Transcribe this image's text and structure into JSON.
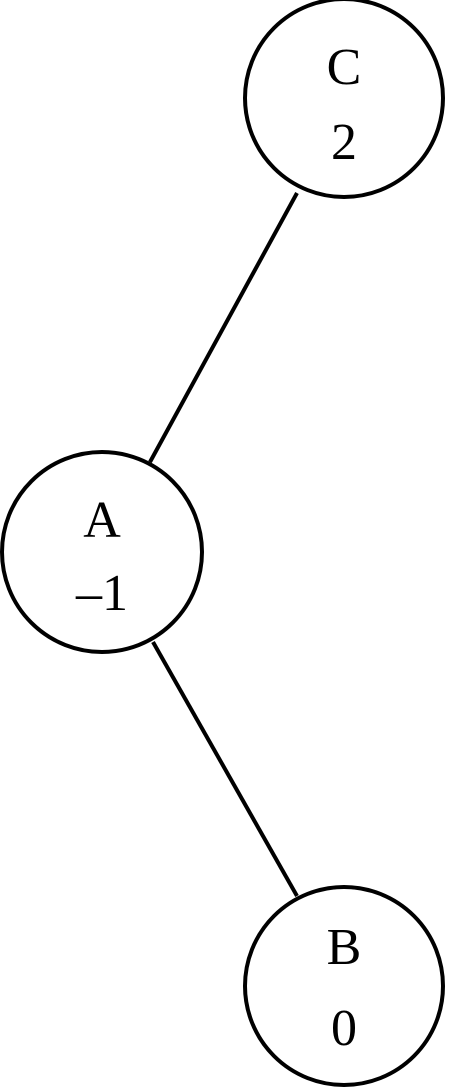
{
  "diagram": {
    "type": "tree",
    "nodes": {
      "c": {
        "label": "C",
        "value": "2"
      },
      "a": {
        "label": "A",
        "value": "–1"
      },
      "b": {
        "label": "B",
        "value": "0"
      }
    },
    "edges": [
      {
        "from": "C",
        "to": "A"
      },
      {
        "from": "A",
        "to": "B"
      }
    ]
  }
}
